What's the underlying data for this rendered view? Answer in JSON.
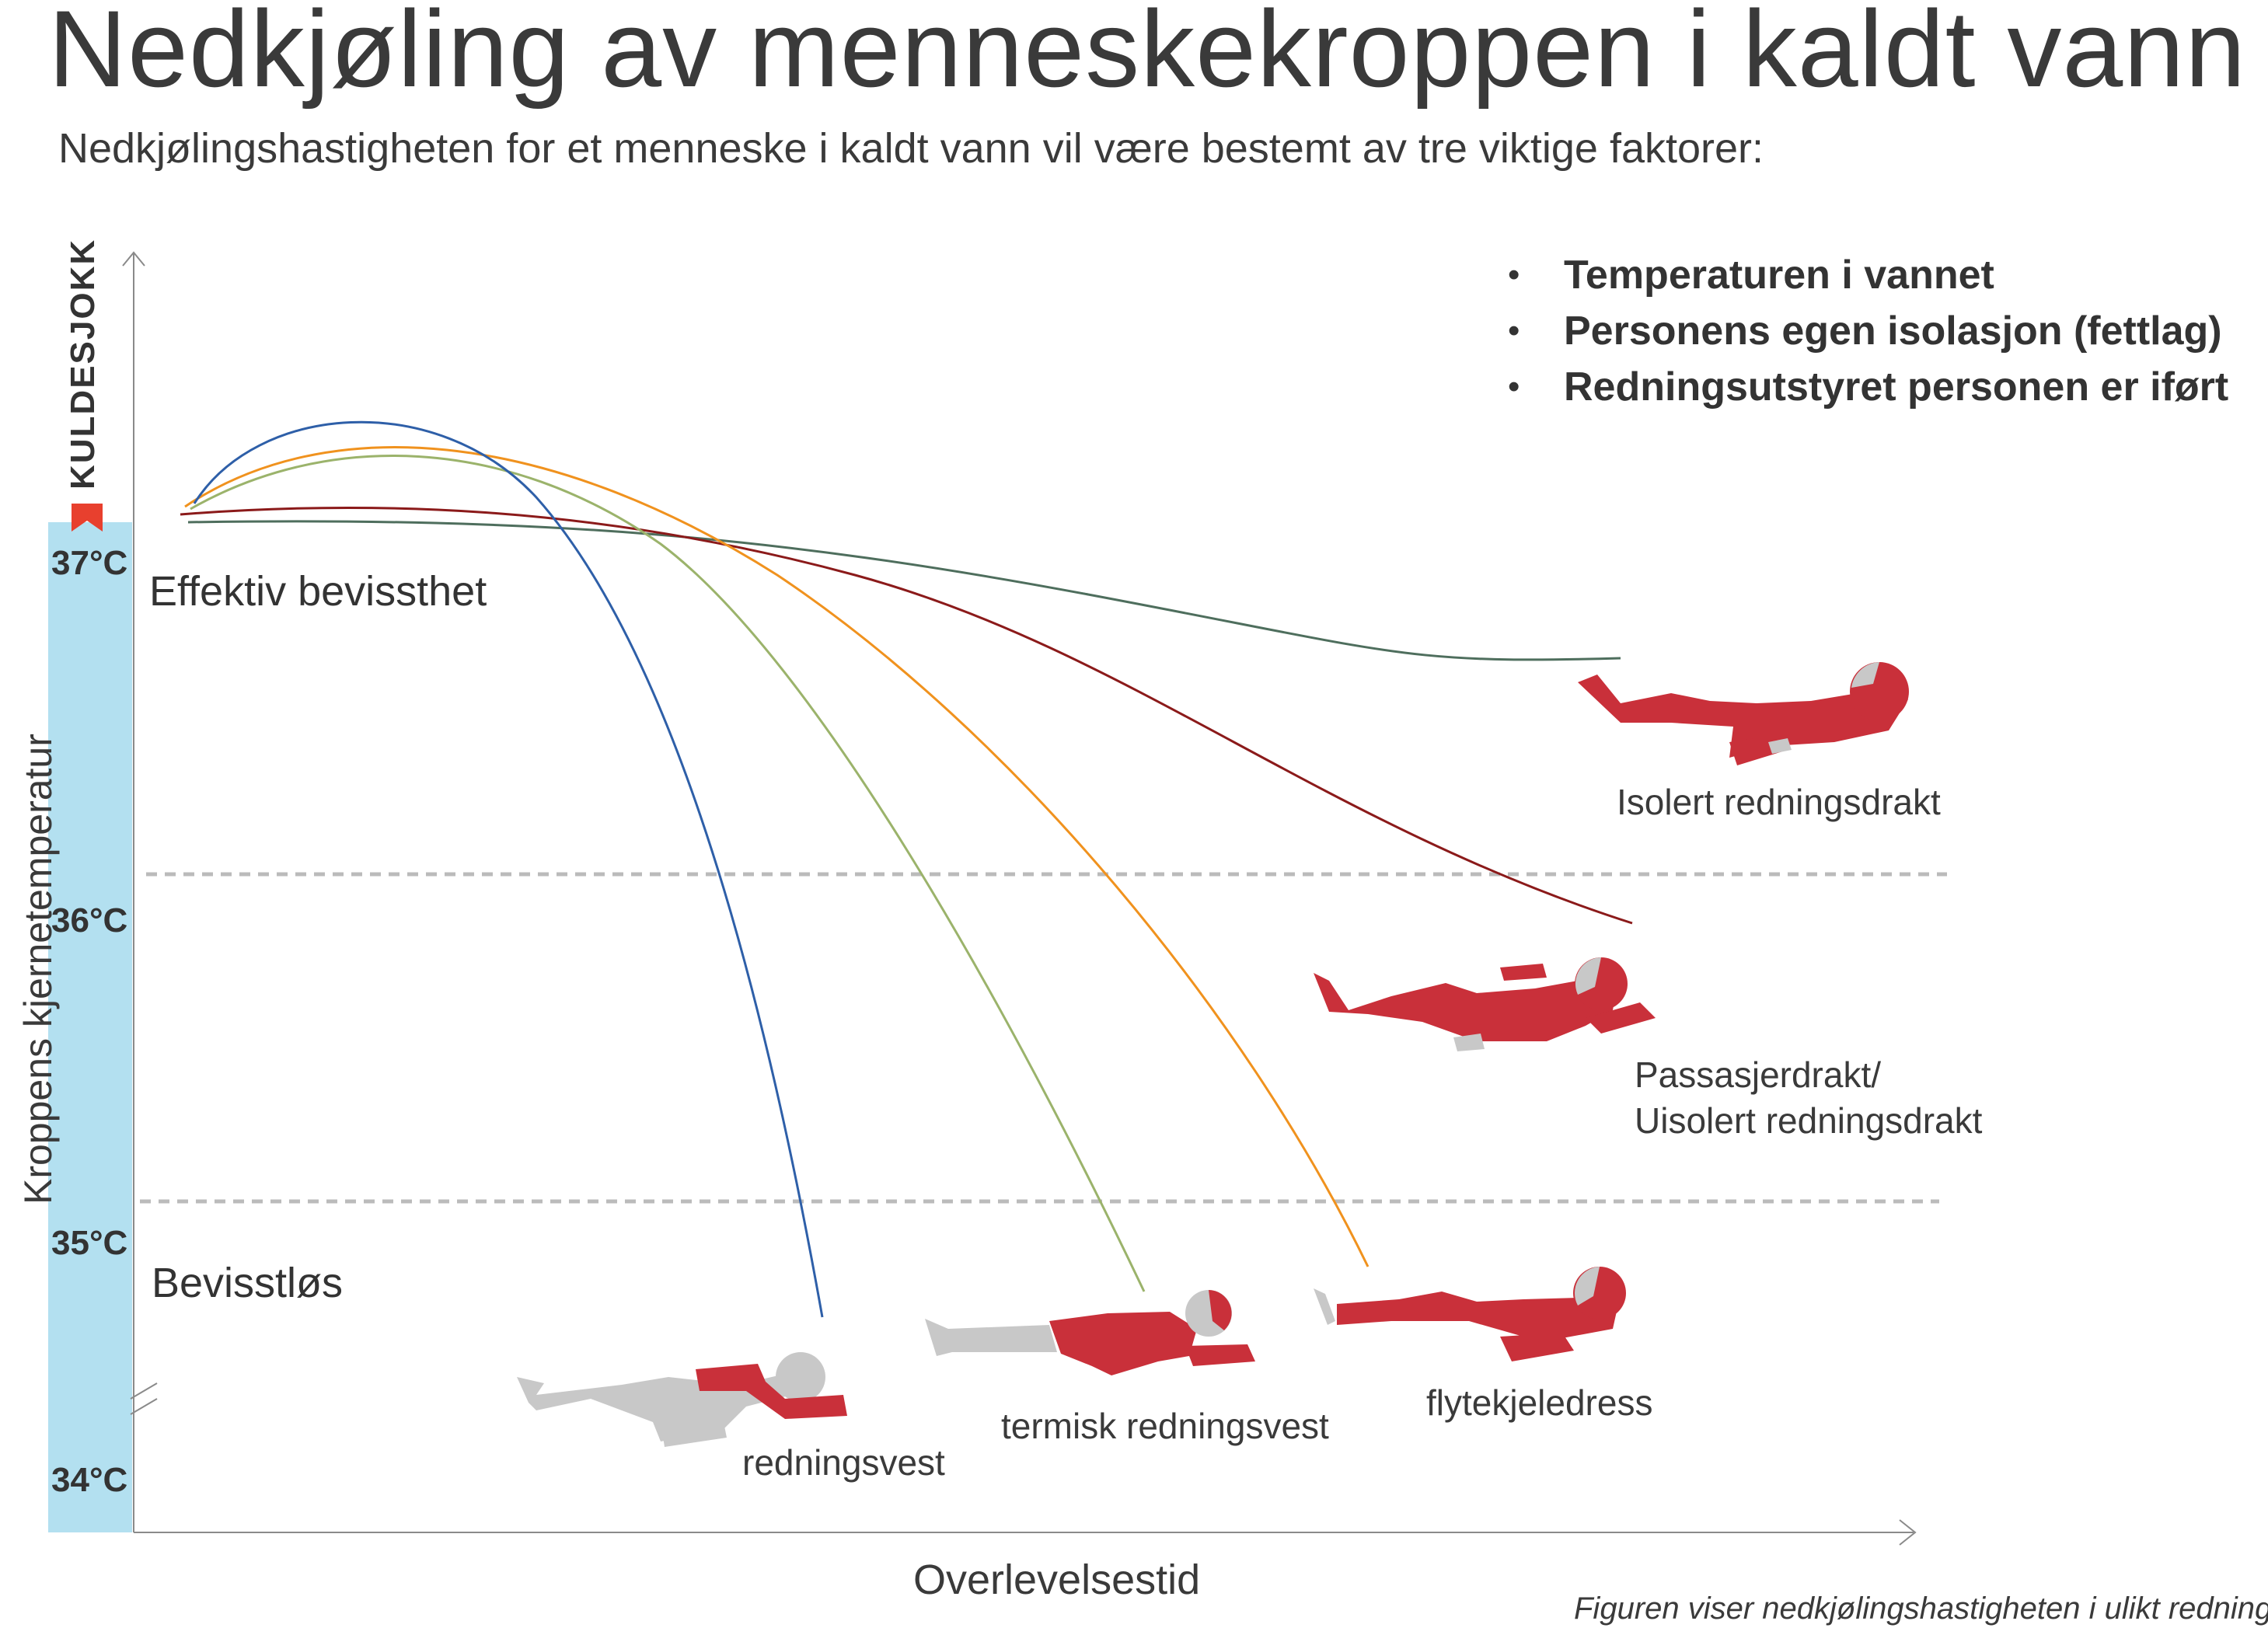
{
  "title": "Nedkjøling av menneskekroppen i kaldt vann",
  "subtitle": "Nedkjølingshastigheten for et menneske i kaldt vann vil være bestemt av tre viktige faktorer:",
  "factors": [
    "Temperaturen i vannet",
    "Personens egen isolasjon (fettlag)",
    "Redningsutstyret personen er iført"
  ],
  "bullet": "•",
  "y_axis": {
    "label": "Kroppens kjernetemperatur",
    "ticks": [
      "37°C",
      "36°C",
      "35°C",
      "34°C"
    ],
    "shock_label": "KULDESJOKK"
  },
  "x_axis": {
    "label": "Overlevelsestid"
  },
  "zones": {
    "upper": "Effektiv bevissthet",
    "lower": "Bevisstløs"
  },
  "equipment": [
    {
      "label": "redningsvest",
      "line_color": "#2e5fa8"
    },
    {
      "label": "termisk redningsvest",
      "line_color": "#9bb36b"
    },
    {
      "label": "flytekjeledress",
      "line_color": "#f0921e"
    },
    {
      "label": "Passasjerdrakt/",
      "label_line2": "Uisolert redningsdrakt",
      "line_color": "#8b1a1a"
    },
    {
      "label": "Isolert redningsdrakt",
      "line_color": "#4e6e5d"
    }
  ],
  "colors": {
    "thermometer": "#b3e0f0",
    "suit_red": "#c9303a",
    "body_grey": "#c8c8c8",
    "threshold_dash": "#bbbbbb",
    "shock_marker": "#e8402e"
  },
  "caption": "Figuren viser nedkjølingshastigheten i ulikt redningsutstyr"
}
